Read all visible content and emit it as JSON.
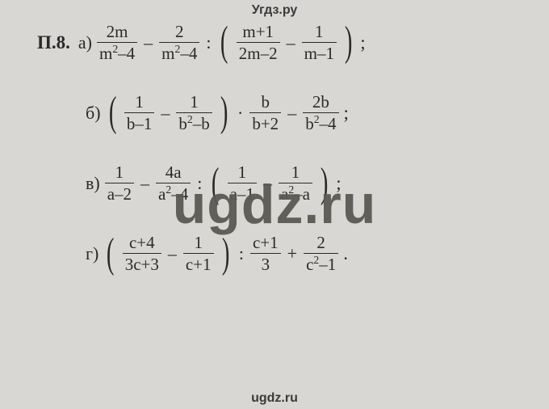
{
  "header": "Угдз.ру",
  "watermark": "ugdz.ru",
  "footer": "ugdz.ru",
  "problem_label": "П.8.",
  "colors": {
    "background": "#d8d7d3",
    "text": "#2a2a2a",
    "watermark": "#5a5954"
  },
  "fontsizes": {
    "body": 23,
    "frac": 21,
    "watermark": 68,
    "header": 16
  },
  "items": [
    {
      "label": "а)",
      "type": "expression",
      "components": [
        {
          "kind": "frac",
          "num": "2m",
          "den": "m²–4"
        },
        {
          "kind": "op",
          "text": "–"
        },
        {
          "kind": "frac",
          "num": "2",
          "den": "m²–4"
        },
        {
          "kind": "op",
          "text": ":"
        },
        {
          "kind": "lparen"
        },
        {
          "kind": "frac",
          "num": "m+1",
          "den": "2m–2"
        },
        {
          "kind": "op",
          "text": "–"
        },
        {
          "kind": "frac",
          "num": "1",
          "den": "m–1"
        },
        {
          "kind": "rparen"
        },
        {
          "kind": "tail",
          "text": ";"
        }
      ]
    },
    {
      "label": "б)",
      "type": "expression",
      "components": [
        {
          "kind": "lparen"
        },
        {
          "kind": "frac",
          "num": "1",
          "den": "b–1"
        },
        {
          "kind": "op",
          "text": "–"
        },
        {
          "kind": "frac",
          "num": "1",
          "den": "b²–b"
        },
        {
          "kind": "rparen"
        },
        {
          "kind": "op",
          "text": "·"
        },
        {
          "kind": "frac",
          "num": "b",
          "den": "b+2"
        },
        {
          "kind": "op",
          "text": "–"
        },
        {
          "kind": "frac",
          "num": "2b",
          "den": "b²–4"
        },
        {
          "kind": "tail",
          "text": ";"
        }
      ]
    },
    {
      "label": "в)",
      "type": "expression",
      "components": [
        {
          "kind": "frac",
          "num": "1",
          "den": "a–2"
        },
        {
          "kind": "op",
          "text": "–"
        },
        {
          "kind": "frac",
          "num": "4a",
          "den": "a²–4"
        },
        {
          "kind": "op",
          "text": ":"
        },
        {
          "kind": "lparen"
        },
        {
          "kind": "frac",
          "num": "1",
          "den": "a–1"
        },
        {
          "kind": "op",
          "text": "–"
        },
        {
          "kind": "frac",
          "num": "1",
          "den": "a²–a"
        },
        {
          "kind": "rparen"
        },
        {
          "kind": "tail",
          "text": ";"
        }
      ]
    },
    {
      "label": "г)",
      "type": "expression",
      "components": [
        {
          "kind": "lparen"
        },
        {
          "kind": "frac",
          "num": "c+4",
          "den": "3c+3"
        },
        {
          "kind": "op",
          "text": "–"
        },
        {
          "kind": "frac",
          "num": "1",
          "den": "c+1"
        },
        {
          "kind": "rparen"
        },
        {
          "kind": "op",
          "text": ":"
        },
        {
          "kind": "frac",
          "num": "c+1",
          "den": "3"
        },
        {
          "kind": "op",
          "text": "+"
        },
        {
          "kind": "frac",
          "num": "2",
          "den": "c²–1"
        },
        {
          "kind": "tail",
          "text": "."
        }
      ]
    }
  ]
}
